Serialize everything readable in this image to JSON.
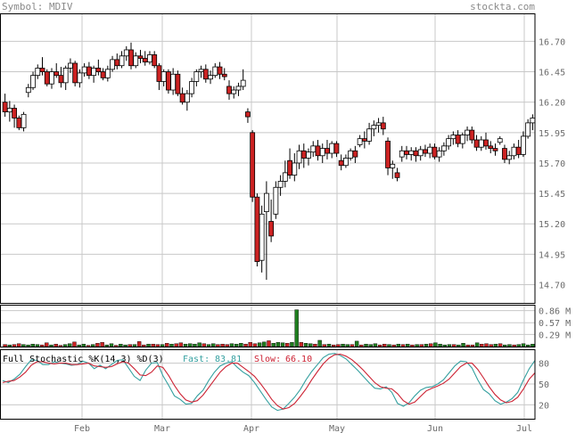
{
  "header": {
    "symbol_label": "Symbol: MDIV",
    "site": "stockta.com"
  },
  "colors": {
    "up_body": "#ffffff",
    "down_body": "#cc2222",
    "up_volume": "#1e7d1e",
    "down_volume": "#cc2222",
    "fast_line": "#35a0a0",
    "slow_line": "#cc2233",
    "grid": "#c8c8c8",
    "axis_text": "#6a6a6a"
  },
  "chart_data": [
    {
      "type": "candlestick",
      "title": "",
      "y_ticks": [
        "16.70",
        "16.45",
        "16.20",
        "15.95",
        "15.70",
        "15.45",
        "15.20",
        "14.95",
        "14.70"
      ],
      "ylim": [
        14.55,
        16.93
      ],
      "x_ticks": [
        "Feb",
        "Mar",
        "Apr",
        "May",
        "Jun",
        "Jul"
      ],
      "grid": true,
      "ohlc": [
        [
          16.2,
          16.27,
          16.08,
          16.12
        ],
        [
          16.12,
          16.21,
          16.04,
          16.15
        ],
        [
          16.15,
          16.18,
          15.99,
          16.07
        ],
        [
          16.07,
          16.09,
          15.97,
          15.99
        ],
        [
          15.99,
          16.12,
          15.96,
          16.1
        ],
        [
          16.28,
          16.35,
          16.24,
          16.32
        ],
        [
          16.32,
          16.45,
          16.3,
          16.42
        ],
        [
          16.42,
          16.51,
          16.39,
          16.48
        ],
        [
          16.48,
          16.57,
          16.42,
          16.45
        ],
        [
          16.45,
          16.47,
          16.33,
          16.35
        ],
        [
          16.35,
          16.48,
          16.31,
          16.45
        ],
        [
          16.45,
          16.52,
          16.4,
          16.42
        ],
        [
          16.42,
          16.49,
          16.32,
          16.36
        ],
        [
          16.36,
          16.5,
          16.3,
          16.48
        ],
        [
          16.48,
          16.56,
          16.44,
          16.52
        ],
        [
          16.52,
          16.54,
          16.33,
          16.36
        ],
        [
          16.36,
          16.47,
          16.32,
          16.44
        ],
        [
          16.44,
          16.52,
          16.41,
          16.49
        ],
        [
          16.49,
          16.53,
          16.39,
          16.42
        ],
        [
          16.42,
          16.5,
          16.36,
          16.48
        ],
        [
          16.48,
          16.55,
          16.42,
          16.45
        ],
        [
          16.45,
          16.48,
          16.38,
          16.4
        ],
        [
          16.4,
          16.5,
          16.37,
          16.47
        ],
        [
          16.47,
          16.58,
          16.45,
          16.55
        ],
        [
          16.55,
          16.6,
          16.47,
          16.5
        ],
        [
          16.5,
          16.62,
          16.48,
          16.58
        ],
        [
          16.58,
          16.66,
          16.54,
          16.63
        ],
        [
          16.63,
          16.69,
          16.47,
          16.5
        ],
        [
          16.5,
          16.61,
          16.48,
          16.58
        ],
        [
          16.58,
          16.63,
          16.52,
          16.56
        ],
        [
          16.56,
          16.62,
          16.5,
          16.53
        ],
        [
          16.53,
          16.62,
          16.51,
          16.59
        ],
        [
          16.59,
          16.62,
          16.48,
          16.5
        ],
        [
          16.5,
          16.52,
          16.3,
          16.37
        ],
        [
          16.37,
          16.47,
          16.33,
          16.45
        ],
        [
          16.45,
          16.47,
          16.27,
          16.3
        ],
        [
          16.3,
          16.48,
          16.26,
          16.43
        ],
        [
          16.43,
          16.46,
          16.25,
          16.27
        ],
        [
          16.27,
          16.32,
          16.18,
          16.2
        ],
        [
          16.2,
          16.3,
          16.13,
          16.27
        ],
        [
          16.27,
          16.4,
          16.24,
          16.37
        ],
        [
          16.37,
          16.47,
          16.33,
          16.45
        ],
        [
          16.45,
          16.5,
          16.4,
          16.47
        ],
        [
          16.47,
          16.51,
          16.36,
          16.39
        ],
        [
          16.39,
          16.46,
          16.35,
          16.42
        ],
        [
          16.42,
          16.52,
          16.4,
          16.49
        ],
        [
          16.49,
          16.53,
          16.39,
          16.43
        ],
        [
          16.43,
          16.48,
          16.38,
          16.41
        ],
        [
          16.33,
          16.38,
          16.22,
          16.27
        ],
        [
          16.27,
          16.33,
          16.23,
          16.3
        ],
        [
          16.3,
          16.36,
          16.25,
          16.33
        ],
        [
          16.33,
          16.47,
          16.3,
          16.38
        ],
        [
          16.12,
          16.15,
          16.03,
          16.08
        ],
        [
          15.95,
          15.97,
          15.38,
          15.42
        ],
        [
          15.42,
          15.45,
          14.85,
          14.89
        ],
        [
          14.9,
          15.35,
          14.8,
          15.28
        ],
        [
          15.3,
          15.55,
          14.74,
          15.45
        ],
        [
          15.22,
          15.4,
          15.05,
          15.1
        ],
        [
          15.28,
          15.55,
          15.24,
          15.5
        ],
        [
          15.5,
          15.6,
          15.43,
          15.55
        ],
        [
          15.55,
          15.72,
          15.5,
          15.62
        ],
        [
          15.72,
          15.82,
          15.57,
          15.6
        ],
        [
          15.6,
          15.78,
          15.55,
          15.7
        ],
        [
          15.7,
          15.85,
          15.65,
          15.8
        ],
        [
          15.8,
          15.86,
          15.66,
          15.74
        ],
        [
          15.74,
          15.82,
          15.68,
          15.79
        ],
        [
          15.79,
          15.88,
          15.75,
          15.84
        ],
        [
          15.84,
          15.89,
          15.72,
          15.76
        ],
        [
          15.76,
          15.86,
          15.7,
          15.82
        ],
        [
          15.82,
          15.89,
          15.73,
          15.78
        ],
        [
          15.78,
          15.88,
          15.74,
          15.86
        ],
        [
          15.86,
          15.88,
          15.75,
          15.78
        ],
        [
          15.72,
          15.77,
          15.64,
          15.68
        ],
        [
          15.68,
          15.77,
          15.66,
          15.74
        ],
        [
          15.74,
          15.82,
          15.72,
          15.8
        ],
        [
          15.8,
          15.84,
          15.7,
          15.75
        ],
        [
          15.85,
          15.93,
          15.83,
          15.9
        ],
        [
          15.9,
          15.96,
          15.82,
          15.88
        ],
        [
          15.88,
          16.03,
          15.85,
          15.98
        ],
        [
          15.98,
          16.05,
          15.92,
          16.01
        ],
        [
          16.01,
          16.07,
          15.95,
          16.03
        ],
        [
          16.03,
          16.08,
          15.93,
          15.98
        ],
        [
          15.88,
          15.91,
          15.6,
          15.66
        ],
        [
          15.66,
          15.72,
          15.57,
          15.69
        ],
        [
          15.62,
          15.66,
          15.55,
          15.58
        ],
        [
          15.75,
          15.84,
          15.71,
          15.8
        ],
        [
          15.8,
          15.84,
          15.73,
          15.77
        ],
        [
          15.77,
          15.83,
          15.72,
          15.8
        ],
        [
          15.8,
          15.83,
          15.71,
          15.76
        ],
        [
          15.76,
          15.84,
          15.72,
          15.81
        ],
        [
          15.81,
          15.85,
          15.75,
          15.78
        ],
        [
          15.78,
          15.86,
          15.74,
          15.83
        ],
        [
          15.83,
          15.86,
          15.73,
          15.75
        ],
        [
          15.75,
          15.83,
          15.71,
          15.8
        ],
        [
          15.8,
          15.87,
          15.76,
          15.84
        ],
        [
          15.84,
          15.93,
          15.81,
          15.9
        ],
        [
          15.9,
          15.96,
          15.85,
          15.93
        ],
        [
          15.93,
          15.97,
          15.83,
          15.86
        ],
        [
          15.86,
          15.95,
          15.82,
          15.93
        ],
        [
          15.93,
          16.0,
          15.88,
          15.97
        ],
        [
          15.97,
          16.0,
          15.86,
          15.89
        ],
        [
          15.89,
          15.93,
          15.8,
          15.83
        ],
        [
          15.83,
          15.92,
          15.8,
          15.89
        ],
        [
          15.89,
          15.95,
          15.81,
          15.84
        ],
        [
          15.84,
          15.88,
          15.78,
          15.82
        ],
        [
          15.82,
          15.86,
          15.76,
          15.8
        ],
        [
          15.87,
          15.92,
          15.85,
          15.9
        ],
        [
          15.82,
          15.85,
          15.7,
          15.73
        ],
        [
          15.73,
          15.8,
          15.69,
          15.76
        ],
        [
          15.76,
          15.86,
          15.73,
          15.83
        ],
        [
          15.83,
          15.89,
          15.74,
          15.77
        ],
        [
          15.77,
          15.96,
          15.75,
          15.92
        ],
        [
          15.92,
          16.06,
          15.9,
          16.03
        ],
        [
          16.03,
          16.1,
          15.97,
          16.07
        ]
      ]
    },
    {
      "type": "bar",
      "title": "",
      "y_ticks": [
        "0.86 M",
        "0.57 M",
        "0.29 M"
      ],
      "ylim": [
        0,
        1.0
      ],
      "values": [
        0.05,
        0.04,
        0.05,
        0.07,
        0.05,
        0.04,
        0.06,
        0.05,
        0.04,
        0.09,
        0.04,
        0.06,
        0.03,
        0.05,
        0.07,
        0.11,
        0.04,
        0.06,
        0.03,
        0.05,
        0.08,
        0.1,
        0.04,
        0.07,
        0.03,
        0.06,
        0.04,
        0.05,
        0.05,
        0.12,
        0.04,
        0.06,
        0.06,
        0.05,
        0.05,
        0.08,
        0.06,
        0.07,
        0.09,
        0.06,
        0.07,
        0.06,
        0.09,
        0.07,
        0.05,
        0.07,
        0.05,
        0.06,
        0.05,
        0.07,
        0.06,
        0.08,
        0.06,
        0.1,
        0.07,
        0.09,
        0.11,
        0.14,
        0.08,
        0.1,
        0.09,
        0.08,
        0.1,
        0.88,
        0.1,
        0.08,
        0.07,
        0.06,
        0.15,
        0.05,
        0.06,
        0.04,
        0.05,
        0.06,
        0.05,
        0.05,
        0.13,
        0.04,
        0.06,
        0.05,
        0.07,
        0.04,
        0.06,
        0.05,
        0.04,
        0.06,
        0.05,
        0.06,
        0.04,
        0.05,
        0.05,
        0.06,
        0.07,
        0.09,
        0.06,
        0.04,
        0.05,
        0.05,
        0.04,
        0.08,
        0.04,
        0.04,
        0.09,
        0.06,
        0.07,
        0.05,
        0.06,
        0.07,
        0.04,
        0.05,
        0.04,
        0.05,
        0.07,
        0.04,
        0.06
      ]
    },
    {
      "type": "line",
      "title": "Full Stochastic %K(14,3) %D(3)",
      "y_ticks": [
        "80",
        "50",
        "20"
      ],
      "ylim": [
        0,
        100
      ],
      "series": [
        {
          "name": "Fast",
          "label": "Fast:",
          "last_value": "83.81",
          "values": [
            55,
            52,
            57,
            64,
            75,
            85,
            84,
            78,
            78,
            82,
            80,
            79,
            77,
            78,
            83,
            80,
            72,
            77,
            72,
            78,
            84,
            85,
            73,
            61,
            55,
            70,
            80,
            81,
            62,
            48,
            33,
            28,
            21,
            22,
            33,
            41,
            55,
            67,
            76,
            80,
            82,
            74,
            67,
            62,
            52,
            40,
            28,
            17,
            12,
            14,
            22,
            31,
            42,
            56,
            68,
            78,
            88,
            93,
            94,
            91,
            86,
            78,
            70,
            61,
            52,
            44,
            43,
            46,
            38,
            22,
            18,
            23,
            33,
            41,
            45,
            46,
            50,
            56,
            66,
            76,
            83,
            82,
            73,
            56,
            42,
            36,
            26,
            21,
            24,
            29,
            38,
            56,
            72,
            84
          ]
        },
        {
          "name": "Slow",
          "label": "Slow:",
          "last_value": "66.10",
          "values": [
            52,
            54,
            55,
            60,
            67,
            77,
            82,
            82,
            80,
            79,
            80,
            80,
            78,
            78,
            79,
            80,
            76,
            75,
            74,
            75,
            79,
            82,
            80,
            72,
            63,
            62,
            67,
            76,
            74,
            62,
            48,
            36,
            27,
            24,
            26,
            34,
            45,
            56,
            67,
            75,
            80,
            80,
            74,
            68,
            61,
            51,
            40,
            28,
            19,
            14,
            16,
            22,
            32,
            43,
            56,
            68,
            79,
            87,
            92,
            93,
            90,
            85,
            78,
            70,
            61,
            52,
            46,
            44,
            43,
            36,
            26,
            21,
            24,
            32,
            40,
            44,
            47,
            51,
            57,
            66,
            75,
            80,
            80,
            71,
            59,
            46,
            35,
            27,
            23,
            25,
            31,
            43,
            57,
            66
          ]
        }
      ]
    }
  ]
}
